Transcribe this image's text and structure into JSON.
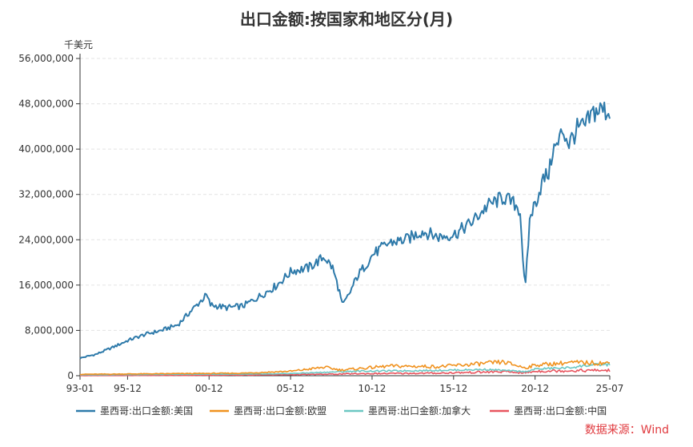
{
  "chart_data": {
    "type": "line",
    "title": "出口金额:按国家和地区分(月)",
    "ylabel": "千美元",
    "ylim": [
      0,
      56000000
    ],
    "yticks": [
      "0",
      "8,000,000",
      "16,000,000",
      "24,000,000",
      "32,000,000",
      "40,000,000",
      "48,000,000",
      "56,000,000"
    ],
    "yticks_values": [
      0,
      8000000,
      16000000,
      24000000,
      32000000,
      40000000,
      48000000,
      56000000
    ],
    "xlim": [
      1993.0,
      2025.5
    ],
    "xticks": [
      {
        "label": "93-01",
        "x": 1993.0
      },
      {
        "label": "95-12",
        "x": 1995.917
      },
      {
        "label": "00-12",
        "x": 2000.917
      },
      {
        "label": "05-12",
        "x": 2005.917
      },
      {
        "label": "10-12",
        "x": 2010.917
      },
      {
        "label": "15-12",
        "x": 2015.917
      },
      {
        "label": "20-12",
        "x": 2020.917
      },
      {
        "label": "25-07",
        "x": 2025.5
      }
    ],
    "grid": true,
    "legend_position": "bottom",
    "series": [
      {
        "name": "墨西哥:出口金额:美国",
        "color": "#2e7aaa",
        "points": [
          [
            1993.0,
            3100000
          ],
          [
            1994.0,
            3800000
          ],
          [
            1995.0,
            5000000
          ],
          [
            1996.0,
            6300000
          ],
          [
            1997.0,
            7300000
          ],
          [
            1998.0,
            8000000
          ],
          [
            1999.0,
            9000000
          ],
          [
            2000.0,
            12000000
          ],
          [
            2000.75,
            14200000
          ],
          [
            2001.0,
            12500000
          ],
          [
            2002.0,
            12000000
          ],
          [
            2003.0,
            12300000
          ],
          [
            2004.0,
            14000000
          ],
          [
            2005.0,
            15800000
          ],
          [
            2006.0,
            18500000
          ],
          [
            2007.0,
            19000000
          ],
          [
            2008.0,
            21000000
          ],
          [
            2008.5,
            19000000
          ],
          [
            2008.9,
            15000000
          ],
          [
            2009.1,
            12300000
          ],
          [
            2009.5,
            14300000
          ],
          [
            2010.0,
            17500000
          ],
          [
            2011.0,
            21500000
          ],
          [
            2012.0,
            23500000
          ],
          [
            2013.0,
            24000000
          ],
          [
            2014.0,
            25500000
          ],
          [
            2015.0,
            24500000
          ],
          [
            2016.0,
            25000000
          ],
          [
            2017.0,
            27000000
          ],
          [
            2018.0,
            30000000
          ],
          [
            2019.0,
            31500000
          ],
          [
            2019.8,
            30000000
          ],
          [
            2020.0,
            29000000
          ],
          [
            2020.3,
            14600000
          ],
          [
            2020.6,
            28000000
          ],
          [
            2021.0,
            31000000
          ],
          [
            2021.4,
            34500000
          ],
          [
            2021.8,
            36000000
          ],
          [
            2022.0,
            40000000
          ],
          [
            2022.3,
            40500000
          ],
          [
            2022.6,
            43500000
          ],
          [
            2023.0,
            41000000
          ],
          [
            2023.5,
            43500000
          ],
          [
            2024.0,
            44000000
          ],
          [
            2024.5,
            46500000
          ],
          [
            2025.0,
            47000000
          ],
          [
            2025.5,
            46500000
          ]
        ]
      },
      {
        "name": "墨西哥:出口金额:欧盟",
        "color": "#f0921f",
        "points": [
          [
            1993.0,
            250000
          ],
          [
            1998.0,
            350000
          ],
          [
            2003.0,
            450000
          ],
          [
            2006.0,
            800000
          ],
          [
            2008.0,
            1500000
          ],
          [
            2009.0,
            1000000
          ],
          [
            2012.0,
            1700000
          ],
          [
            2015.0,
            1600000
          ],
          [
            2018.0,
            2200000
          ],
          [
            2019.0,
            2400000
          ],
          [
            2020.3,
            1400000
          ],
          [
            2021.0,
            1900000
          ],
          [
            2023.0,
            2300000
          ],
          [
            2024.0,
            2300000
          ],
          [
            2025.5,
            2200000
          ]
        ]
      },
      {
        "name": "墨西哥:出口金额:加拿大",
        "color": "#6cc7c3",
        "points": [
          [
            1993.0,
            150000
          ],
          [
            2000.0,
            250000
          ],
          [
            2005.0,
            300000
          ],
          [
            2008.0,
            600000
          ],
          [
            2010.0,
            800000
          ],
          [
            2014.0,
            900000
          ],
          [
            2018.0,
            1100000
          ],
          [
            2020.3,
            700000
          ],
          [
            2021.0,
            1200000
          ],
          [
            2023.0,
            1400000
          ],
          [
            2024.0,
            1800000
          ],
          [
            2025.5,
            2000000
          ]
        ]
      },
      {
        "name": "墨西哥:出口金额:中国",
        "color": "#e8555f",
        "points": [
          [
            1993.0,
            20000
          ],
          [
            2000.0,
            60000
          ],
          [
            2005.0,
            150000
          ],
          [
            2008.0,
            250000
          ],
          [
            2010.0,
            350000
          ],
          [
            2015.0,
            450000
          ],
          [
            2018.0,
            650000
          ],
          [
            2019.0,
            700000
          ],
          [
            2020.3,
            500000
          ],
          [
            2021.0,
            800000
          ],
          [
            2023.0,
            900000
          ],
          [
            2025.5,
            950000
          ]
        ]
      }
    ]
  },
  "source_text": "数据来源：Wind"
}
